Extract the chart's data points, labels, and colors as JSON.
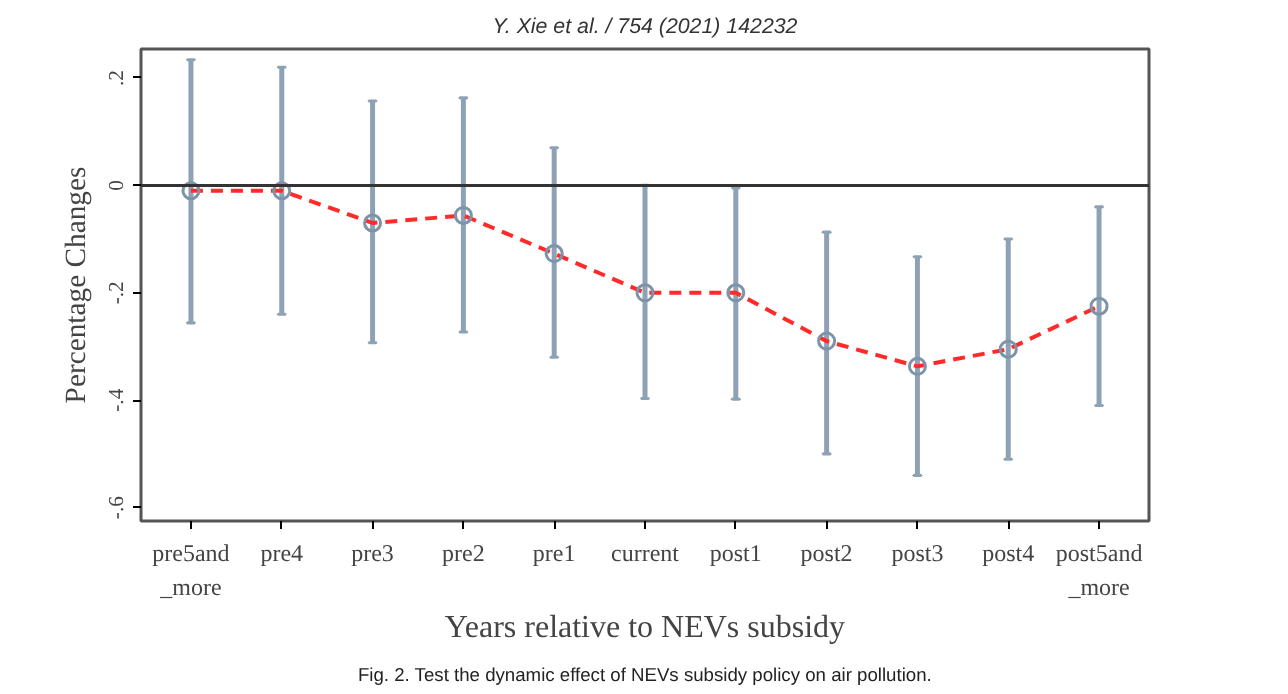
{
  "chart_data": {
    "type": "line",
    "title": "Y. Xie et al. / 754 (2021) 142232",
    "xlabel": "Years relative to NEVs subsidy",
    "ylabel": "Percentage Changes",
    "categories": [
      "pre5and\n_more",
      "pre4",
      "pre3",
      "pre2",
      "pre1",
      "current",
      "post1",
      "post2",
      "post3",
      "post4",
      "post5and\n_more"
    ],
    "series": [
      {
        "color": "#ff2a2a",
        "values": [
          -0.01,
          -0.01,
          -0.07,
          -0.056,
          -0.127,
          -0.2,
          -0.2,
          -0.29,
          -0.337,
          -0.305,
          -0.225
        ],
        "errors": [
          [
            -0.256,
            0.234
          ],
          [
            -0.24,
            0.22
          ],
          [
            -0.293,
            0.157
          ],
          [
            -0.273,
            0.163
          ],
          [
            -0.32,
            0.07
          ],
          [
            -0.397,
            0.0
          ],
          [
            -0.398,
            -0.005
          ],
          [
            -0.5,
            -0.087
          ],
          [
            -0.54,
            -0.133
          ],
          [
            -0.51,
            -0.1
          ],
          [
            -0.41,
            -0.04
          ]
        ]
      }
    ],
    "ylim": [
      -0.625,
      0.254
    ],
    "yticks": [
      {
        "value": 0.2,
        "label": ".2"
      },
      {
        "value": 0,
        "label": "0"
      },
      {
        "value": -0.2,
        "label": "-.2"
      },
      {
        "value": -0.4,
        "label": "-.4"
      },
      {
        "value": -0.6,
        "label": "-.6"
      }
    ],
    "ref_lines": [
      {
        "axis": "y",
        "value": 0,
        "color": "#333333"
      }
    ],
    "marker": "circle",
    "line_style": "dashed",
    "grid": false,
    "annotations": [
      "Fig. 2. Test the dynamic effect of NEVs subsidy policy on air pollution."
    ]
  }
}
